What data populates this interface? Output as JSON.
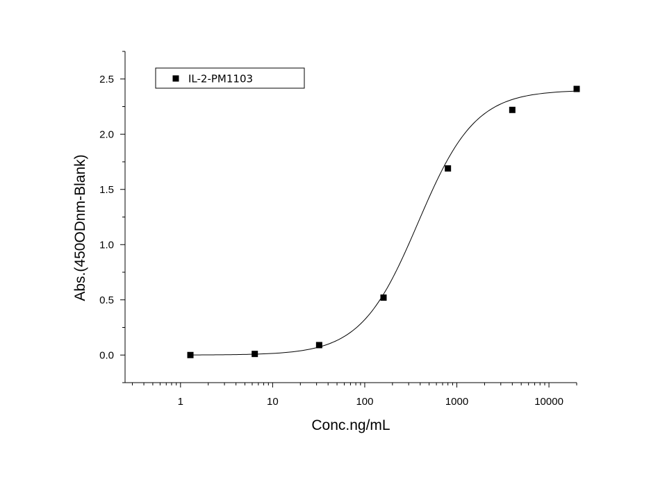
{
  "chart_data": {
    "type": "scatter",
    "xscale": "log",
    "xlabel": "Conc.ng/mL",
    "ylabel": "Abs.(450ODnm-Blank)",
    "xlim": [
      0.25,
      20000
    ],
    "ylim": [
      -0.25,
      2.75
    ],
    "xticks": [
      {
        "value": 1,
        "label": "1"
      },
      {
        "value": 10,
        "label": "10"
      },
      {
        "value": 100,
        "label": "100"
      },
      {
        "value": 1000,
        "label": "1000"
      },
      {
        "value": 10000,
        "label": "10000"
      }
    ],
    "yticks": [
      {
        "value": 0.0,
        "label": "0.0"
      },
      {
        "value": 0.5,
        "label": "0.5"
      },
      {
        "value": 1.0,
        "label": "1.0"
      },
      {
        "value": 1.5,
        "label": "1.5"
      },
      {
        "value": 2.0,
        "label": "2.0"
      },
      {
        "value": 2.5,
        "label": "2.5"
      }
    ],
    "grid": false,
    "legend_position": "top-left",
    "series": [
      {
        "name": "IL-2-PM1103",
        "marker": "square",
        "color": "#000000",
        "points": [
          {
            "x": 1.28,
            "y": 0.0
          },
          {
            "x": 6.4,
            "y": 0.01
          },
          {
            "x": 32,
            "y": 0.09
          },
          {
            "x": 160,
            "y": 0.52
          },
          {
            "x": 800,
            "y": 1.69
          },
          {
            "x": 4000,
            "y": 2.22
          },
          {
            "x": 20000,
            "y": 2.41
          }
        ]
      }
    ],
    "fit_curve": {
      "model": "4PL",
      "bottom": 0.0,
      "top": 2.4,
      "ec50": 380,
      "hill": 1.4,
      "color": "#000000"
    }
  }
}
